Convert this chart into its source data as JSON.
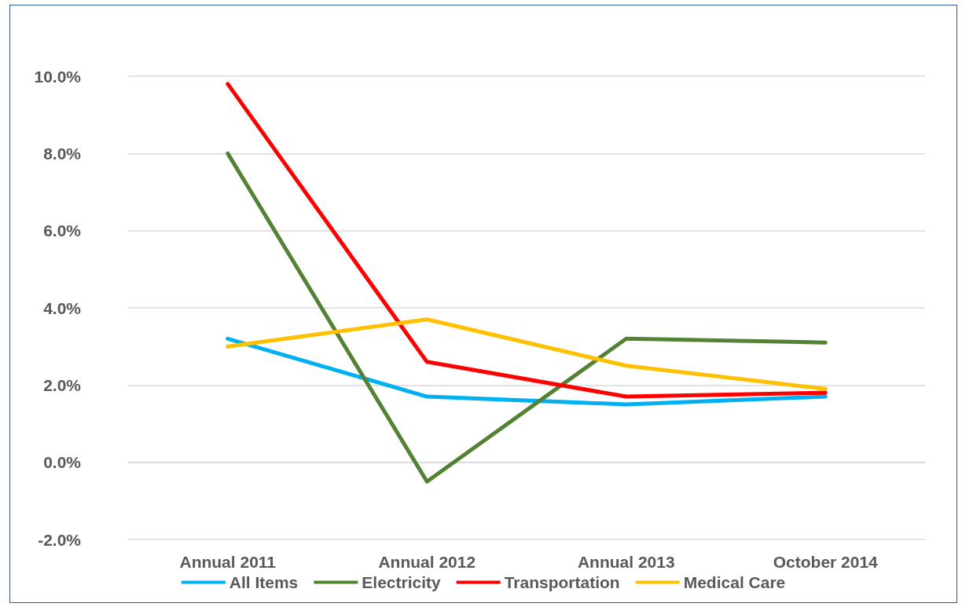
{
  "chart_data": {
    "type": "line",
    "categories": [
      "Annual 2011",
      "Annual 2012",
      "Annual 2013",
      "October 2014"
    ],
    "series": [
      {
        "name": "All Items",
        "color": "#00b0f0",
        "values": [
          3.2,
          1.7,
          1.5,
          1.7
        ]
      },
      {
        "name": "Electricity",
        "color": "#548235",
        "values": [
          8.0,
          -0.5,
          3.2,
          3.1
        ]
      },
      {
        "name": "Transportation",
        "color": "#ff0000",
        "values": [
          9.8,
          2.6,
          1.7,
          1.8
        ]
      },
      {
        "name": "Medical Care",
        "color": "#ffc000",
        "values": [
          3.0,
          3.7,
          2.5,
          1.9
        ]
      }
    ],
    "ylim": [
      -2,
      10
    ],
    "yticks": [
      {
        "value": -2,
        "label": "-2.0%"
      },
      {
        "value": 0,
        "label": "0.0%"
      },
      {
        "value": 2,
        "label": "2.0%"
      },
      {
        "value": 4,
        "label": "4.0%"
      },
      {
        "value": 6,
        "label": "6.0%"
      },
      {
        "value": 8,
        "label": "8.0%"
      },
      {
        "value": 10,
        "label": "10.0%"
      }
    ],
    "grid": "y",
    "legend": "bottom",
    "marker": "none",
    "line_style": "solid"
  }
}
